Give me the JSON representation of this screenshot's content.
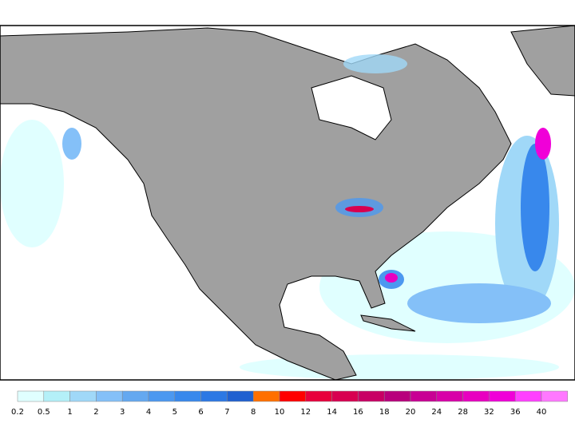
{
  "colorbar": {
    "labels": [
      0.2,
      0.5,
      1,
      2,
      3,
      4,
      5,
      6,
      7,
      8,
      10,
      12,
      14,
      16,
      18,
      20,
      24,
      28,
      32,
      36,
      40
    ],
    "colors": [
      "#e0ffff",
      "#b4f0f8",
      "#a0d8f8",
      "#84c0f8",
      "#64a8f0",
      "#4c98f0",
      "#3888ec",
      "#2c78e4",
      "#2060d0",
      "#ff7000",
      "#ff0000",
      "#e8003c",
      "#d80050",
      "#c80064",
      "#b8007c",
      "#c80094",
      "#d800a8",
      "#e800c0",
      "#f000d8",
      "#ff40ff",
      "#ff78ff"
    ]
  }
}
